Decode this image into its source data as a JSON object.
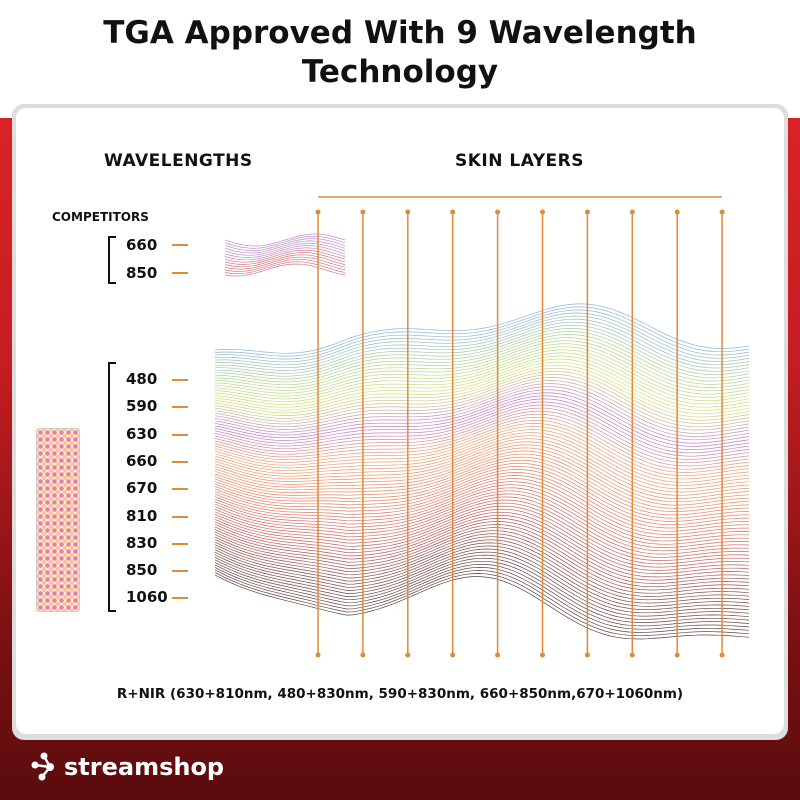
{
  "title": "TGA Approved With 9 Wavelength Technology",
  "headers": {
    "wavelengths": "WAVELENGTHS",
    "skin_layers": "SKIN LAYERS"
  },
  "competitors": {
    "label": "COMPETITORS",
    "wavelengths": [
      "660",
      "850"
    ]
  },
  "product_wavelengths": [
    "480",
    "590",
    "630",
    "660",
    "670",
    "810",
    "830",
    "850",
    "1060"
  ],
  "footer_note": "R+NIR (630+810nm, 480+830nm, 590+830nm, 660+850nm,670+1060nm)",
  "brand": {
    "name": "streamshop",
    "icon": "streamshop-logo-icon"
  },
  "colors": {
    "accent": "#e08a3a",
    "brand_red": "#c51d22",
    "dark_red": "#5a0c0e"
  }
}
